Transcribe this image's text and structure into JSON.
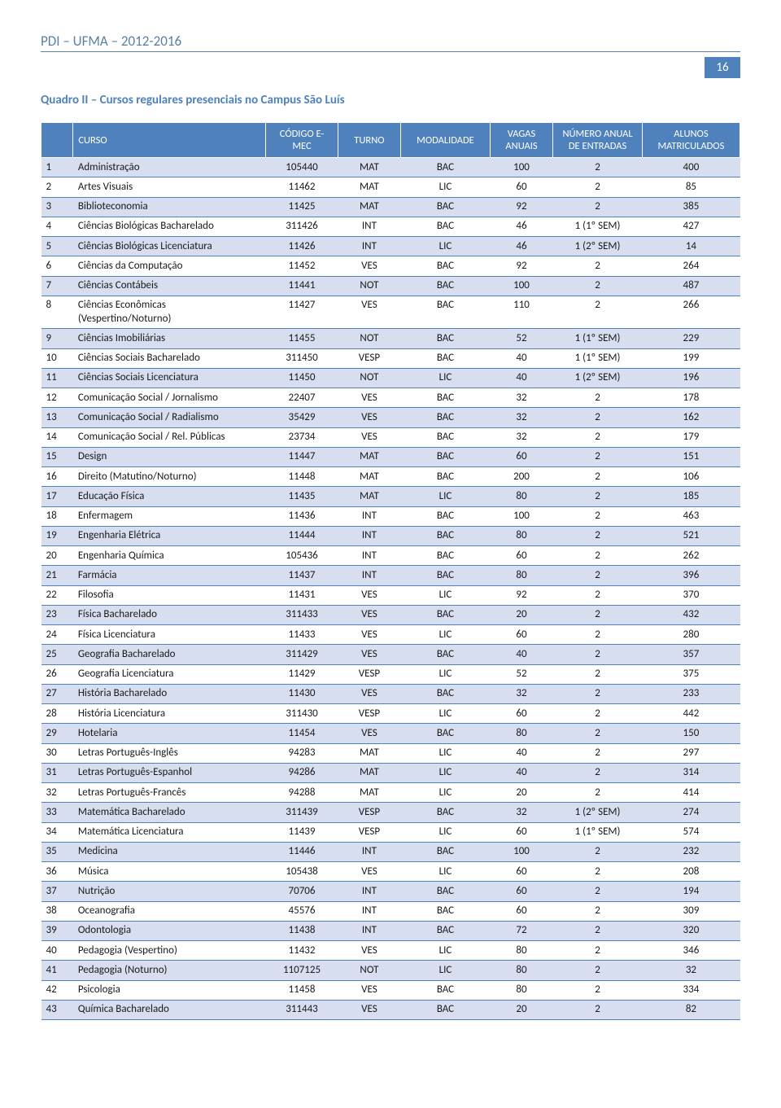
{
  "doc_header": "PDI – UFMA – 2012-2016",
  "page_number": "16",
  "quadro_title": "Quadro II – Cursos regulares presenciais no Campus São Luís",
  "columns": [
    "",
    "CURSO",
    "CÓDIGO E-MEC",
    "TURNO",
    "MODALIDADE",
    "VAGAS ANUAIS",
    "NÚMERO ANUAL DE ENTRADAS",
    "ALUNOS MATRICULADOS"
  ],
  "rows": [
    {
      "n": "1",
      "curso": "Administração",
      "cod": "105440",
      "turno": "MAT",
      "mod": "BAC",
      "vagas": "100",
      "entr": "2",
      "mat": "400"
    },
    {
      "n": "2",
      "curso": "Artes Visuais",
      "cod": "11462",
      "turno": "MAT",
      "mod": "LIC",
      "vagas": "60",
      "entr": "2",
      "mat": "85"
    },
    {
      "n": "3",
      "curso": "Biblioteconomia",
      "cod": "11425",
      "turno": "MAT",
      "mod": "BAC",
      "vagas": "92",
      "entr": "2",
      "mat": "385"
    },
    {
      "n": "4",
      "curso": "Ciências Biológicas Bacharelado",
      "cod": "311426",
      "turno": "INT",
      "mod": "BAC",
      "vagas": "46",
      "entr": "1 (1º SEM)",
      "mat": "427"
    },
    {
      "n": "5",
      "curso": "Ciências Biológicas Licenciatura",
      "cod": "11426",
      "turno": "INT",
      "mod": "LIC",
      "vagas": "46",
      "entr": "1 (2º SEM)",
      "mat": "14"
    },
    {
      "n": "6",
      "curso": "Ciências da Computação",
      "cod": "11452",
      "turno": "VES",
      "mod": "BAC",
      "vagas": "92",
      "entr": "2",
      "mat": "264"
    },
    {
      "n": "7",
      "curso": "Ciências Contábeis",
      "cod": "11441",
      "turno": "NOT",
      "mod": "BAC",
      "vagas": "100",
      "entr": "2",
      "mat": "487"
    },
    {
      "n": "8",
      "curso": "Ciências Econômicas (Vespertino/Noturno)",
      "cod": "11427",
      "turno": "VES",
      "mod": "BAC",
      "vagas": "110",
      "entr": "2",
      "mat": "266"
    },
    {
      "n": "9",
      "curso": "Ciências Imobiliárias",
      "cod": "11455",
      "turno": "NOT",
      "mod": "BAC",
      "vagas": "52",
      "entr": "1 (1º SEM)",
      "mat": "229"
    },
    {
      "n": "10",
      "curso": "Ciências Sociais Bacharelado",
      "cod": "311450",
      "turno": "VESP",
      "mod": "BAC",
      "vagas": "40",
      "entr": "1 (1º SEM)",
      "mat": "199"
    },
    {
      "n": "11",
      "curso": "Ciências Sociais Licenciatura",
      "cod": "11450",
      "turno": "NOT",
      "mod": "LIC",
      "vagas": "40",
      "entr": "1 (2º SEM)",
      "mat": "196"
    },
    {
      "n": "12",
      "curso": "Comunicação Social / Jornalismo",
      "cod": "22407",
      "turno": "VES",
      "mod": "BAC",
      "vagas": "32",
      "entr": "2",
      "mat": "178"
    },
    {
      "n": "13",
      "curso": "Comunicação Social / Radialismo",
      "cod": "35429",
      "turno": "VES",
      "mod": "BAC",
      "vagas": "32",
      "entr": "2",
      "mat": "162"
    },
    {
      "n": "14",
      "curso": "Comunicação Social / Rel. Públicas",
      "cod": "23734",
      "turno": "VES",
      "mod": "BAC",
      "vagas": "32",
      "entr": "2",
      "mat": "179"
    },
    {
      "n": "15",
      "curso": "Design",
      "cod": "11447",
      "turno": "MAT",
      "mod": "BAC",
      "vagas": "60",
      "entr": "2",
      "mat": "151"
    },
    {
      "n": "16",
      "curso": "Direito (Matutino/Noturno)",
      "cod": "11448",
      "turno": "MAT",
      "mod": "BAC",
      "vagas": "200",
      "entr": "2",
      "mat": "106"
    },
    {
      "n": "17",
      "curso": "Educação Física",
      "cod": "11435",
      "turno": "MAT",
      "mod": "LIC",
      "vagas": "80",
      "entr": "2",
      "mat": "185"
    },
    {
      "n": "18",
      "curso": "Enfermagem",
      "cod": "11436",
      "turno": "INT",
      "mod": "BAC",
      "vagas": "100",
      "entr": "2",
      "mat": "463"
    },
    {
      "n": "19",
      "curso": "Engenharia Elétrica",
      "cod": "11444",
      "turno": "INT",
      "mod": "BAC",
      "vagas": "80",
      "entr": "2",
      "mat": "521"
    },
    {
      "n": "20",
      "curso": "Engenharia Química",
      "cod": "105436",
      "turno": "INT",
      "mod": "BAC",
      "vagas": "60",
      "entr": "2",
      "mat": "262"
    },
    {
      "n": "21",
      "curso": "Farmácia",
      "cod": "11437",
      "turno": "INT",
      "mod": "BAC",
      "vagas": "80",
      "entr": "2",
      "mat": "396"
    },
    {
      "n": "22",
      "curso": "Filosofia",
      "cod": "11431",
      "turno": "VES",
      "mod": "LIC",
      "vagas": "92",
      "entr": "2",
      "mat": "370"
    },
    {
      "n": "23",
      "curso": "Física Bacharelado",
      "cod": "311433",
      "turno": "VES",
      "mod": "BAC",
      "vagas": "20",
      "entr": "2",
      "mat": "432"
    },
    {
      "n": "24",
      "curso": "Física Licenciatura",
      "cod": "11433",
      "turno": "VES",
      "mod": "LIC",
      "vagas": "60",
      "entr": "2",
      "mat": "280"
    },
    {
      "n": "25",
      "curso": "Geografia Bacharelado",
      "cod": "311429",
      "turno": "VES",
      "mod": "BAC",
      "vagas": "40",
      "entr": "2",
      "mat": "357"
    },
    {
      "n": "26",
      "curso": "Geografia Licenciatura",
      "cod": "11429",
      "turno": "VESP",
      "mod": "LIC",
      "vagas": "52",
      "entr": "2",
      "mat": "375"
    },
    {
      "n": "27",
      "curso": "História Bacharelado",
      "cod": "11430",
      "turno": "VES",
      "mod": "BAC",
      "vagas": "32",
      "entr": "2",
      "mat": "233"
    },
    {
      "n": "28",
      "curso": "História Licenciatura",
      "cod": "311430",
      "turno": "VESP",
      "mod": "LIC",
      "vagas": "60",
      "entr": "2",
      "mat": "442"
    },
    {
      "n": "29",
      "curso": "Hotelaria",
      "cod": "11454",
      "turno": "VES",
      "mod": "BAC",
      "vagas": "80",
      "entr": "2",
      "mat": "150"
    },
    {
      "n": "30",
      "curso": "Letras Português-Inglês",
      "cod": "94283",
      "turno": "MAT",
      "mod": "LIC",
      "vagas": "40",
      "entr": "2",
      "mat": "297"
    },
    {
      "n": "31",
      "curso": "Letras Português-Espanhol",
      "cod": "94286",
      "turno": "MAT",
      "mod": "LIC",
      "vagas": "40",
      "entr": "2",
      "mat": "314"
    },
    {
      "n": "32",
      "curso": "Letras Português-Francês",
      "cod": "94288",
      "turno": "MAT",
      "mod": "LIC",
      "vagas": "20",
      "entr": "2",
      "mat": "414"
    },
    {
      "n": "33",
      "curso": "Matemática Bacharelado",
      "cod": "311439",
      "turno": "VESP",
      "mod": "BAC",
      "vagas": "32",
      "entr": "1 (2º SEM)",
      "mat": "274"
    },
    {
      "n": "34",
      "curso": "Matemática Licenciatura",
      "cod": "11439",
      "turno": "VESP",
      "mod": "LIC",
      "vagas": "60",
      "entr": "1 (1º SEM)",
      "mat": "574"
    },
    {
      "n": "35",
      "curso": "Medicina",
      "cod": "11446",
      "turno": "INT",
      "mod": "BAC",
      "vagas": "100",
      "entr": "2",
      "mat": "232"
    },
    {
      "n": "36",
      "curso": "Música",
      "cod": "105438",
      "turno": "VES",
      "mod": "LIC",
      "vagas": "60",
      "entr": "2",
      "mat": "208"
    },
    {
      "n": "37",
      "curso": "Nutrição",
      "cod": "70706",
      "turno": "INT",
      "mod": "BAC",
      "vagas": "60",
      "entr": "2",
      "mat": "194"
    },
    {
      "n": "38",
      "curso": "Oceanografia",
      "cod": "45576",
      "turno": "INT",
      "mod": "BAC",
      "vagas": "60",
      "entr": "2",
      "mat": "309"
    },
    {
      "n": "39",
      "curso": "Odontologia",
      "cod": "11438",
      "turno": "INT",
      "mod": "BAC",
      "vagas": "72",
      "entr": "2",
      "mat": "320"
    },
    {
      "n": "40",
      "curso": "Pedagogia (Vespertino)",
      "cod": "11432",
      "turno": "VES",
      "mod": "LIC",
      "vagas": "80",
      "entr": "2",
      "mat": "346"
    },
    {
      "n": "41",
      "curso": "Pedagogia (Noturno)",
      "cod": "1107125",
      "turno": "NOT",
      "mod": "LIC",
      "vagas": "80",
      "entr": "2",
      "mat": "32"
    },
    {
      "n": "42",
      "curso": "Psicologia",
      "cod": "11458",
      "turno": "VES",
      "mod": "BAC",
      "vagas": "80",
      "entr": "2",
      "mat": "334"
    },
    {
      "n": "43",
      "curso": "Química Bacharelado",
      "cod": "311443",
      "turno": "VES",
      "mod": "BAC",
      "vagas": "20",
      "entr": "2",
      "mat": "82"
    }
  ],
  "colors": {
    "header_blue": "#4f81bd",
    "accent_blue": "#5b7fa6",
    "row_even": "#d6deef",
    "row_odd": "#ffffff",
    "text": "#1a1a1a"
  }
}
